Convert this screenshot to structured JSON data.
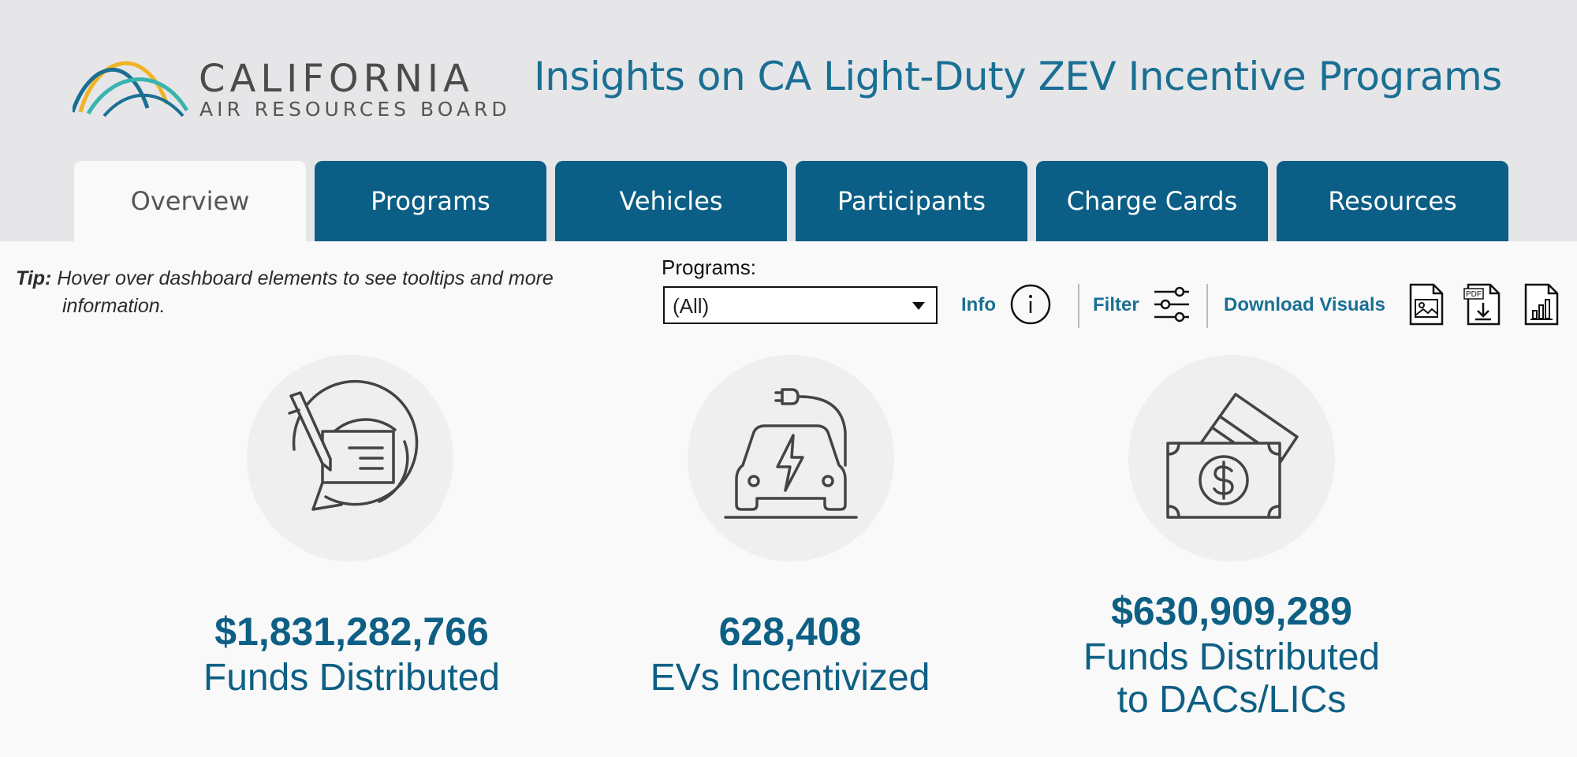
{
  "header": {
    "logo_name": "CALIFORNIA",
    "logo_subtitle": "AIR RESOURCES BOARD",
    "title": "Insights on CA Light-Duty ZEV Incentive Programs"
  },
  "tabs": [
    {
      "label": "Overview",
      "active": true
    },
    {
      "label": "Programs",
      "active": false
    },
    {
      "label": "Vehicles",
      "active": false
    },
    {
      "label": "Participants",
      "active": false
    },
    {
      "label": "Charge Cards",
      "active": false
    },
    {
      "label": "Resources",
      "active": false
    }
  ],
  "tip": {
    "label": "Tip:",
    "line1": " Hover over dashboard elements to see tooltips and more",
    "line2": "information."
  },
  "toolbar": {
    "programs_label": "Programs:",
    "programs_value": "(All)",
    "info_label": "Info",
    "filter_label": "Filter",
    "download_label": "Download Visuals",
    "pdf_badge": "PDF"
  },
  "metrics": [
    {
      "value": "$1,831,282,766",
      "label": "Funds Distributed",
      "icon": "signed-check-cycle-icon"
    },
    {
      "value": "628,408",
      "label": "EVs Incentivized",
      "icon": "electric-car-icon"
    },
    {
      "value": "$630,909,289",
      "label_line1": "Funds Distributed",
      "label_line2": "to DACs/LICs",
      "icon": "cash-and-card-icon"
    }
  ],
  "colors": {
    "brand_blue": "#0b5e85",
    "title_blue": "#1a6f93",
    "header_bg": "#e6e6e9",
    "page_bg": "#f9f9f9"
  }
}
